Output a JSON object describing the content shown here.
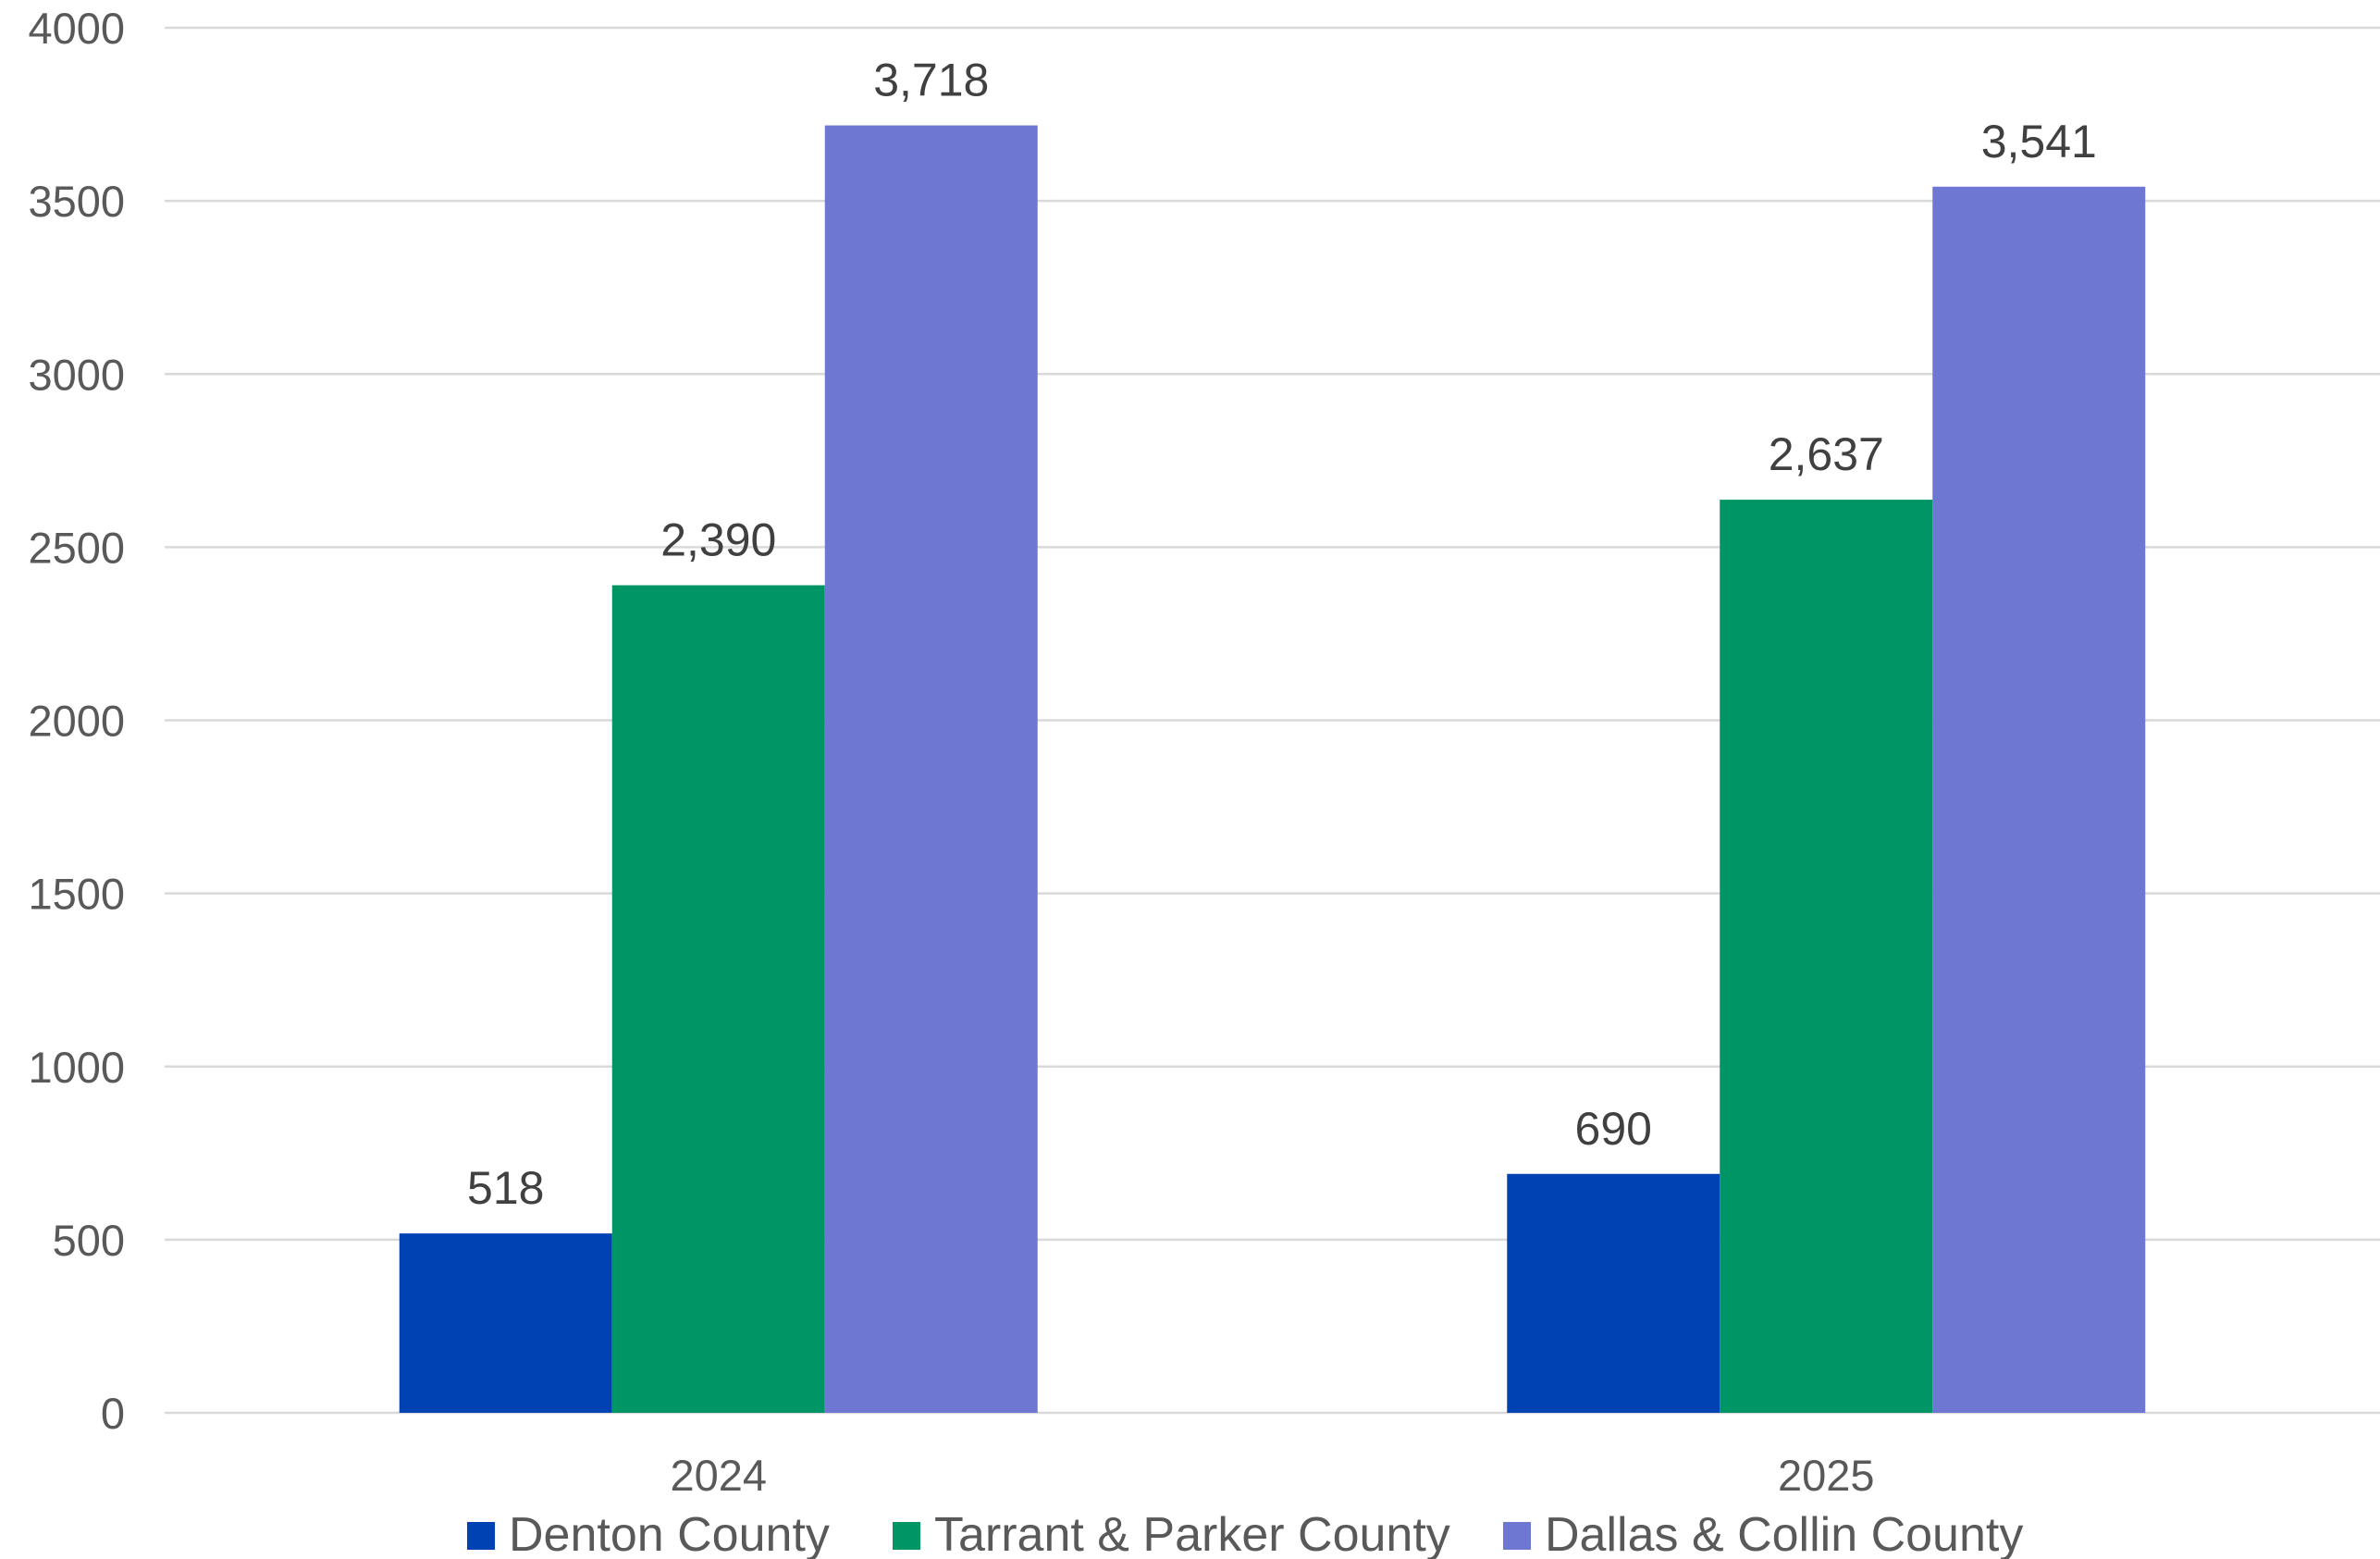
{
  "chart_data": {
    "type": "bar",
    "title": "",
    "xlabel": "",
    "ylabel": "",
    "categories": [
      "2024",
      "2025"
    ],
    "series": [
      {
        "name": "Denton County",
        "values": [
          518,
          690
        ],
        "labels": [
          "518",
          "690"
        ],
        "color": "#0042B4"
      },
      {
        "name": "Tarrant & Parker County",
        "values": [
          2390,
          2637
        ],
        "labels": [
          "2,390",
          "2,637"
        ],
        "color": "#009564"
      },
      {
        "name": "Dallas & Collin County",
        "values": [
          3718,
          3541
        ],
        "labels": [
          "3,718",
          "3,541"
        ],
        "color": "#6E78D3"
      }
    ],
    "ylim": [
      0,
      4000
    ],
    "yticks": [
      "0",
      "500",
      "1000",
      "1500",
      "2000",
      "2500",
      "3000",
      "3500",
      "4000"
    ],
    "grid": true,
    "legend": "bottom"
  }
}
